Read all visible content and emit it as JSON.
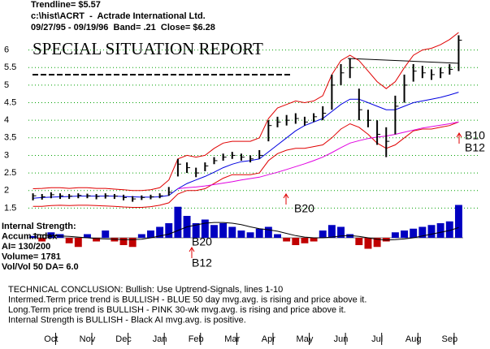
{
  "header": {
    "trendline": "Trendline= $5.57",
    "file": "c:\\hist\\ACRT  -  Actrade International Ltd.",
    "dates": "09/27/95 - 09/19/96  Band= .21  Close= $6.28",
    "report": "SPECIAL SITUATION REPORT"
  },
  "panel_labels": [
    "Internal Strength:",
    "Accum.Index",
    "AI= 130/200",
    "Volume= 1781",
    "Vol/Vol 50 DA= 6.0"
  ],
  "annotations": [
    "B20",
    "B20",
    "B12",
    "B10",
    "B12"
  ],
  "conclusion": [
    "TECHNICAL CONCLUSION: Bullish: Use Uptrend-Signals, lines 1-10",
    "Intermed.Term price trend is BULLISH - BLUE 50 day mvg.avg. is rising and price above it.",
    "Long.Term price trend is BULLISH - PINK 30-wk mvg.avg. is rising and price above it.",
    "Internal Strength is BULLISH - Black AI mvg.avg. is positive."
  ],
  "chart_data": [
    {
      "type": "hilo",
      "categories": [
        null,
        null,
        "Oct",
        null,
        null,
        null,
        "Nov",
        null,
        null,
        null,
        "Dec",
        null,
        null,
        null,
        "Jan",
        null,
        null,
        null,
        "Feb",
        null,
        null,
        null,
        "Mar",
        null,
        null,
        null,
        "Apr",
        null,
        null,
        null,
        "May",
        null,
        null,
        null,
        "Jun",
        null,
        null,
        null,
        "Jul",
        null,
        null,
        null,
        "Aug",
        null,
        null,
        null,
        "Sep",
        null
      ],
      "color": "#000000",
      "high": [
        1.92,
        1.9,
        1.95,
        1.92,
        1.9,
        1.92,
        1.91,
        1.9,
        1.92,
        1.9,
        1.88,
        1.84,
        1.86,
        1.88,
        1.92,
        2.1,
        2.9,
        2.8,
        2.65,
        2.8,
        2.95,
        3.05,
        3.1,
        3.05,
        3.0,
        3.15,
        4.0,
        4.1,
        4.15,
        4.2,
        4.1,
        4.2,
        4.4,
        5.3,
        5.6,
        5.76,
        4.9,
        4.3,
        4.0,
        3.8,
        4.7,
        5.3,
        5.6,
        5.55,
        5.45,
        5.5,
        5.6,
        6.42
      ],
      "low": [
        1.72,
        1.74,
        1.78,
        1.76,
        1.76,
        1.78,
        1.78,
        1.75,
        1.77,
        1.76,
        1.72,
        1.68,
        1.73,
        1.75,
        1.78,
        1.85,
        2.4,
        2.5,
        2.38,
        2.55,
        2.75,
        2.85,
        2.9,
        2.85,
        2.8,
        2.9,
        3.4,
        3.8,
        3.85,
        3.9,
        3.85,
        3.95,
        4.0,
        4.3,
        5.0,
        5.2,
        4.0,
        3.8,
        3.3,
        2.95,
        3.6,
        4.5,
        5.1,
        5.2,
        5.15,
        5.2,
        5.3,
        5.4
      ],
      "close": [
        1.85,
        1.82,
        1.88,
        1.85,
        1.84,
        1.86,
        1.85,
        1.83,
        1.85,
        1.84,
        1.8,
        1.76,
        1.8,
        1.82,
        1.85,
        1.95,
        2.75,
        2.65,
        2.5,
        2.7,
        2.85,
        2.95,
        3.0,
        2.95,
        2.9,
        3.0,
        3.85,
        3.95,
        4.0,
        4.05,
        3.95,
        4.1,
        4.2,
        5.0,
        5.35,
        5.5,
        4.3,
        4.0,
        3.6,
        3.4,
        4.4,
        5.0,
        5.4,
        5.35,
        5.3,
        5.35,
        5.45,
        6.28
      ],
      "lines": [
        {
          "color": "#e00000",
          "values": [
            2.05,
            2.06,
            2.08,
            2.08,
            2.06,
            2.08,
            2.08,
            2.06,
            2.06,
            2.04,
            2.02,
            2.0,
            2.0,
            2.02,
            2.08,
            2.3,
            2.9,
            3.0,
            2.95,
            3.0,
            3.2,
            3.35,
            3.4,
            3.4,
            3.4,
            3.5,
            4.05,
            4.35,
            4.45,
            4.55,
            4.5,
            4.55,
            4.7,
            5.3,
            5.7,
            5.85,
            5.7,
            5.4,
            5.1,
            4.9,
            5.1,
            5.5,
            5.85,
            6.0,
            6.05,
            6.15,
            6.3,
            6.5
          ]
        },
        {
          "color": "#e00000",
          "values": [
            1.55,
            1.55,
            1.57,
            1.58,
            1.57,
            1.58,
            1.58,
            1.57,
            1.56,
            1.55,
            1.53,
            1.52,
            1.52,
            1.54,
            1.58,
            1.65,
            1.9,
            2.0,
            2.0,
            2.05,
            2.2,
            2.35,
            2.45,
            2.45,
            2.45,
            2.5,
            2.85,
            3.05,
            3.15,
            3.2,
            3.2,
            3.25,
            3.3,
            3.5,
            3.75,
            3.9,
            3.8,
            3.6,
            3.35,
            3.2,
            3.3,
            3.5,
            3.7,
            3.75,
            3.75,
            3.8,
            3.85,
            3.95
          ]
        },
        {
          "color": "#0000e0",
          "values": [
            1.78,
            1.8,
            1.81,
            1.82,
            1.83,
            1.84,
            1.84,
            1.84,
            1.84,
            1.84,
            1.83,
            1.82,
            1.81,
            1.81,
            1.82,
            1.86,
            2.05,
            2.2,
            2.3,
            2.4,
            2.52,
            2.65,
            2.75,
            2.82,
            2.85,
            2.9,
            3.1,
            3.3,
            3.5,
            3.7,
            3.85,
            3.95,
            4.05,
            4.25,
            4.45,
            4.6,
            4.6,
            4.5,
            4.4,
            4.3,
            4.3,
            4.4,
            4.5,
            4.55,
            4.6,
            4.65,
            4.72,
            4.8
          ]
        },
        {
          "color": "#e000e0",
          "values": [
            null,
            null,
            null,
            null,
            null,
            null,
            null,
            null,
            null,
            null,
            null,
            null,
            null,
            null,
            null,
            null,
            2.05,
            2.08,
            2.1,
            2.13,
            2.17,
            2.21,
            2.25,
            2.3,
            2.34,
            2.38,
            2.45,
            2.52,
            2.6,
            2.68,
            2.76,
            2.85,
            2.95,
            3.08,
            3.22,
            3.35,
            3.42,
            3.48,
            3.52,
            3.55,
            3.6,
            3.66,
            3.72,
            3.78,
            3.82,
            3.86,
            3.9,
            3.95
          ]
        }
      ],
      "ylim": [
        1.3,
        6.5
      ],
      "yticks": [
        1.5,
        2,
        2.5,
        3,
        3.5,
        4,
        4.5,
        5,
        5.5,
        6
      ],
      "grid": true,
      "grid_color": "#00a000"
    },
    {
      "type": "bar",
      "values": [
        0.05,
        -0.1,
        0.15,
        0.1,
        -0.15,
        -0.25,
        0.1,
        -0.1,
        0.2,
        -0.1,
        -0.2,
        -0.25,
        0.1,
        0.2,
        0.3,
        0.4,
        0.85,
        0.6,
        0.4,
        0.5,
        0.35,
        0.4,
        0.3,
        0.2,
        0.15,
        0.25,
        0.3,
        0.1,
        -0.1,
        -0.2,
        -0.15,
        -0.1,
        0.2,
        0.35,
        0.3,
        0.1,
        -0.2,
        -0.3,
        -0.25,
        -0.1,
        0.15,
        0.2,
        0.25,
        0.3,
        0.35,
        0.4,
        0.45,
        0.9
      ],
      "positive_color": "#0000c0",
      "negative_color": "#c00000",
      "line": {
        "color": "#000000",
        "values": [
          0.1,
          0.08,
          0.06,
          0.05,
          0.04,
          0.02,
          0.0,
          -0.02,
          -0.03,
          -0.04,
          -0.05,
          -0.05,
          -0.04,
          0.0,
          0.05,
          0.1,
          0.2,
          0.3,
          0.35,
          0.4,
          0.42,
          0.42,
          0.4,
          0.36,
          0.3,
          0.25,
          0.22,
          0.18,
          0.12,
          0.06,
          0.02,
          0.0,
          0.0,
          0.02,
          0.05,
          0.06,
          0.04,
          0.0,
          -0.04,
          -0.06,
          -0.05,
          -0.03,
          0.0,
          0.05,
          0.1,
          0.15,
          0.2,
          0.28
        ]
      },
      "ylim": [
        -0.6,
        1.0
      ]
    }
  ]
}
